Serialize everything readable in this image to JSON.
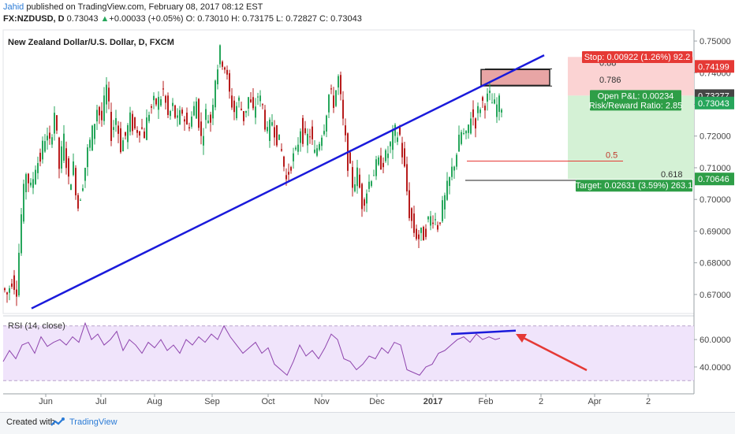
{
  "header": {
    "author": "Jahid",
    "published": " published on TradingView.com, February 08, 2017 08:12 EST",
    "symbol": "FX:NZDUSD, D",
    "last": "0.73043",
    "change_arrow": "▲",
    "change": "+0.00033 (+0.05%)",
    "ohlc": "O: 0.73010 H: 0.73175 L: 0.72827 C: 0.73043"
  },
  "chart_data": {
    "type": "candlestick",
    "title": "New Zealand Dollar/U.S. Dollar, D, FXCM",
    "x_ticks": [
      "Jun",
      "Jul",
      "Aug",
      "Sep",
      "Oct",
      "Nov",
      "Dec",
      "2017",
      "Feb",
      "2",
      "Apr",
      "2"
    ],
    "y_ticks": [
      "0.75000",
      "0.74000",
      "0.73000",
      "0.72000",
      "0.71000",
      "0.70000",
      "0.69000",
      "0.68000",
      "0.67000"
    ],
    "ylim": [
      0.664,
      0.7535
    ],
    "price_path": [
      [
        0,
        0.672
      ],
      [
        6,
        0.67
      ],
      [
        12,
        0.675
      ],
      [
        18,
        0.672
      ],
      [
        24,
        0.695
      ],
      [
        30,
        0.709
      ],
      [
        36,
        0.703
      ],
      [
        42,
        0.711
      ],
      [
        48,
        0.713
      ],
      [
        54,
        0.72
      ],
      [
        60,
        0.717
      ],
      [
        66,
        0.728
      ],
      [
        72,
        0.71
      ],
      [
        78,
        0.719
      ],
      [
        84,
        0.705
      ],
      [
        90,
        0.71
      ],
      [
        96,
        0.698
      ],
      [
        102,
        0.706
      ],
      [
        108,
        0.715
      ],
      [
        114,
        0.721
      ],
      [
        120,
        0.729
      ],
      [
        126,
        0.725
      ],
      [
        132,
        0.735
      ],
      [
        138,
        0.721
      ],
      [
        144,
        0.726
      ],
      [
        150,
        0.717
      ],
      [
        156,
        0.72
      ],
      [
        162,
        0.725
      ],
      [
        168,
        0.722
      ],
      [
        174,
        0.723
      ],
      [
        180,
        0.721
      ],
      [
        186,
        0.728
      ],
      [
        192,
        0.73
      ],
      [
        198,
        0.731
      ],
      [
        204,
        0.734
      ],
      [
        210,
        0.726
      ],
      [
        216,
        0.729
      ],
      [
        222,
        0.724
      ],
      [
        228,
        0.728
      ],
      [
        234,
        0.723
      ],
      [
        240,
        0.726
      ],
      [
        246,
        0.731
      ],
      [
        252,
        0.719
      ],
      [
        258,
        0.727
      ],
      [
        264,
        0.725
      ],
      [
        270,
        0.739
      ],
      [
        276,
        0.746
      ],
      [
        282,
        0.742
      ],
      [
        288,
        0.733
      ],
      [
        294,
        0.728
      ],
      [
        300,
        0.731
      ],
      [
        306,
        0.726
      ],
      [
        312,
        0.732
      ],
      [
        318,
        0.727
      ],
      [
        324,
        0.733
      ],
      [
        330,
        0.729
      ],
      [
        336,
        0.72
      ],
      [
        342,
        0.725
      ],
      [
        348,
        0.72
      ],
      [
        354,
        0.715
      ],
      [
        360,
        0.706
      ],
      [
        366,
        0.712
      ],
      [
        372,
        0.714
      ],
      [
        378,
        0.723
      ],
      [
        384,
        0.718
      ],
      [
        390,
        0.721
      ],
      [
        396,
        0.714
      ],
      [
        402,
        0.719
      ],
      [
        408,
        0.724
      ],
      [
        414,
        0.733
      ],
      [
        420,
        0.731
      ],
      [
        426,
        0.738
      ],
      [
        432,
        0.724
      ],
      [
        438,
        0.712
      ],
      [
        444,
        0.705
      ],
      [
        450,
        0.708
      ],
      [
        456,
        0.699
      ],
      [
        462,
        0.703
      ],
      [
        468,
        0.708
      ],
      [
        474,
        0.71
      ],
      [
        480,
        0.712
      ],
      [
        486,
        0.713
      ],
      [
        492,
        0.717
      ],
      [
        498,
        0.721
      ],
      [
        504,
        0.72
      ],
      [
        510,
        0.709
      ],
      [
        516,
        0.696
      ],
      [
        522,
        0.69
      ],
      [
        528,
        0.688
      ],
      [
        534,
        0.689
      ],
      [
        540,
        0.693
      ],
      [
        546,
        0.695
      ],
      [
        552,
        0.692
      ],
      [
        558,
        0.697
      ],
      [
        564,
        0.703
      ],
      [
        570,
        0.709
      ],
      [
        576,
        0.715
      ],
      [
        582,
        0.721
      ],
      [
        588,
        0.719
      ],
      [
        594,
        0.727
      ],
      [
        600,
        0.725
      ],
      [
        606,
        0.73
      ],
      [
        612,
        0.731
      ],
      [
        618,
        0.732
      ],
      [
        624,
        0.729
      ],
      [
        630,
        0.73
      ]
    ],
    "trendline": {
      "from": [
        40,
        0.6656
      ],
      "to": [
        690,
        0.7455
      ]
    },
    "fib_levels": [
      {
        "label": "0.88",
        "value": 0.7412
      },
      {
        "label": "0.786",
        "value": 0.7358
      },
      {
        "label": "0.5",
        "value": 0.7121
      },
      {
        "label": "0.618",
        "value": 0.706
      }
    ],
    "position": {
      "entry": 0.73277,
      "stop": 0.74199,
      "target": 0.70646,
      "stop_label": "Stop: 0.00922 (1.26%) 92.2",
      "pnl_label": "Open P&L: 0.00234",
      "rr_label": "Risk/Reward Ratio: 2.85",
      "target_label": "Target: 0.02631 (3.59%) 263.1"
    },
    "price_badges": [
      {
        "value": "0.74199",
        "color": "#e53935",
        "level": 0.74199
      },
      {
        "value": "0.73277",
        "color": "#454545",
        "level": 0.73277
      },
      {
        "value": "0.73043",
        "color": "#26a65b",
        "level": 0.73043
      },
      {
        "value": "0.70646",
        "color": "#2e9e47",
        "level": 0.70646
      }
    ],
    "rsi": {
      "title": "RSI (14, close)",
      "y_ticks": [
        "60.0000",
        "40.0000"
      ],
      "upper": 70,
      "lower": 30,
      "ylim": [
        25,
        75
      ],
      "values": [
        [
          0,
          44
        ],
        [
          8,
          52
        ],
        [
          16,
          46
        ],
        [
          24,
          56
        ],
        [
          32,
          58
        ],
        [
          40,
          50
        ],
        [
          48,
          62
        ],
        [
          56,
          55
        ],
        [
          64,
          58
        ],
        [
          72,
          60
        ],
        [
          80,
          56
        ],
        [
          88,
          62
        ],
        [
          96,
          58
        ],
        [
          104,
          72
        ],
        [
          112,
          60
        ],
        [
          120,
          64
        ],
        [
          128,
          56
        ],
        [
          136,
          60
        ],
        [
          144,
          66
        ],
        [
          152,
          52
        ],
        [
          160,
          60
        ],
        [
          168,
          56
        ],
        [
          176,
          50
        ],
        [
          184,
          58
        ],
        [
          192,
          54
        ],
        [
          200,
          60
        ],
        [
          208,
          52
        ],
        [
          216,
          56
        ],
        [
          224,
          50
        ],
        [
          232,
          60
        ],
        [
          240,
          56
        ],
        [
          248,
          62
        ],
        [
          256,
          58
        ],
        [
          264,
          64
        ],
        [
          272,
          60
        ],
        [
          280,
          70
        ],
        [
          288,
          62
        ],
        [
          296,
          56
        ],
        [
          304,
          50
        ],
        [
          312,
          54
        ],
        [
          320,
          58
        ],
        [
          328,
          50
        ],
        [
          336,
          54
        ],
        [
          344,
          42
        ],
        [
          352,
          38
        ],
        [
          360,
          34
        ],
        [
          368,
          44
        ],
        [
          376,
          56
        ],
        [
          384,
          48
        ],
        [
          392,
          52
        ],
        [
          400,
          46
        ],
        [
          408,
          54
        ],
        [
          416,
          64
        ],
        [
          424,
          60
        ],
        [
          432,
          46
        ],
        [
          440,
          44
        ],
        [
          448,
          38
        ],
        [
          456,
          42
        ],
        [
          464,
          48
        ],
        [
          472,
          46
        ],
        [
          480,
          54
        ],
        [
          488,
          50
        ],
        [
          496,
          58
        ],
        [
          504,
          56
        ],
        [
          512,
          38
        ],
        [
          520,
          36
        ],
        [
          528,
          34
        ],
        [
          536,
          40
        ],
        [
          544,
          42
        ],
        [
          552,
          50
        ],
        [
          560,
          52
        ],
        [
          568,
          56
        ],
        [
          576,
          60
        ],
        [
          584,
          62
        ],
        [
          592,
          58
        ],
        [
          600,
          64
        ],
        [
          608,
          60
        ],
        [
          616,
          62
        ],
        [
          624,
          60
        ],
        [
          630,
          61
        ]
      ],
      "divergence_line": {
        "from": [
          572,
          64
        ],
        "to": [
          654,
          66.5
        ]
      }
    }
  },
  "footer": {
    "created": "Created with",
    "brand": "TradingView"
  },
  "colors": {
    "up": "#26a65b",
    "down": "#b71c1c",
    "trendline": "#1a1adb",
    "rsi": "#8e44ad",
    "arrow": "#e53935"
  }
}
